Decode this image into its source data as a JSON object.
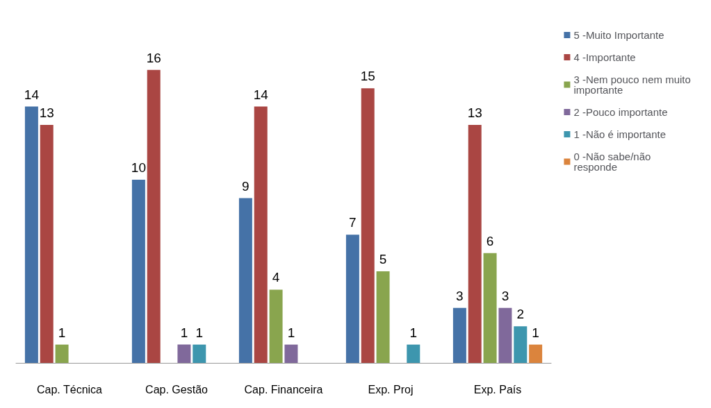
{
  "chart_data": {
    "type": "bar",
    "categories": [
      "Cap. Técnica",
      "Cap. Gestão",
      "Cap. Financeira",
      "Exp. Proj",
      "Exp. País"
    ],
    "series": [
      {
        "name": "5 -Muito Importante",
        "color": "#4572a7",
        "values": [
          14,
          10,
          9,
          7,
          3
        ]
      },
      {
        "name": "4 -Importante",
        "color": "#aa4643",
        "values": [
          13,
          16,
          14,
          15,
          13
        ]
      },
      {
        "name": "3 -Nem pouco nem muito importante",
        "color": "#89a54e",
        "values": [
          1,
          null,
          4,
          5,
          6
        ]
      },
      {
        "name": "2 -Pouco importante",
        "color": "#80699b",
        "values": [
          null,
          1,
          1,
          null,
          3
        ]
      },
      {
        "name": "1 -Não é importante",
        "color": "#3d96ae",
        "values": [
          null,
          1,
          null,
          1,
          2
        ]
      },
      {
        "name": "0 -Não sabe/não responde",
        "color": "#db843d",
        "values": [
          null,
          null,
          null,
          null,
          1
        ]
      }
    ],
    "data_labels": true,
    "grid": false,
    "legend": "right"
  }
}
